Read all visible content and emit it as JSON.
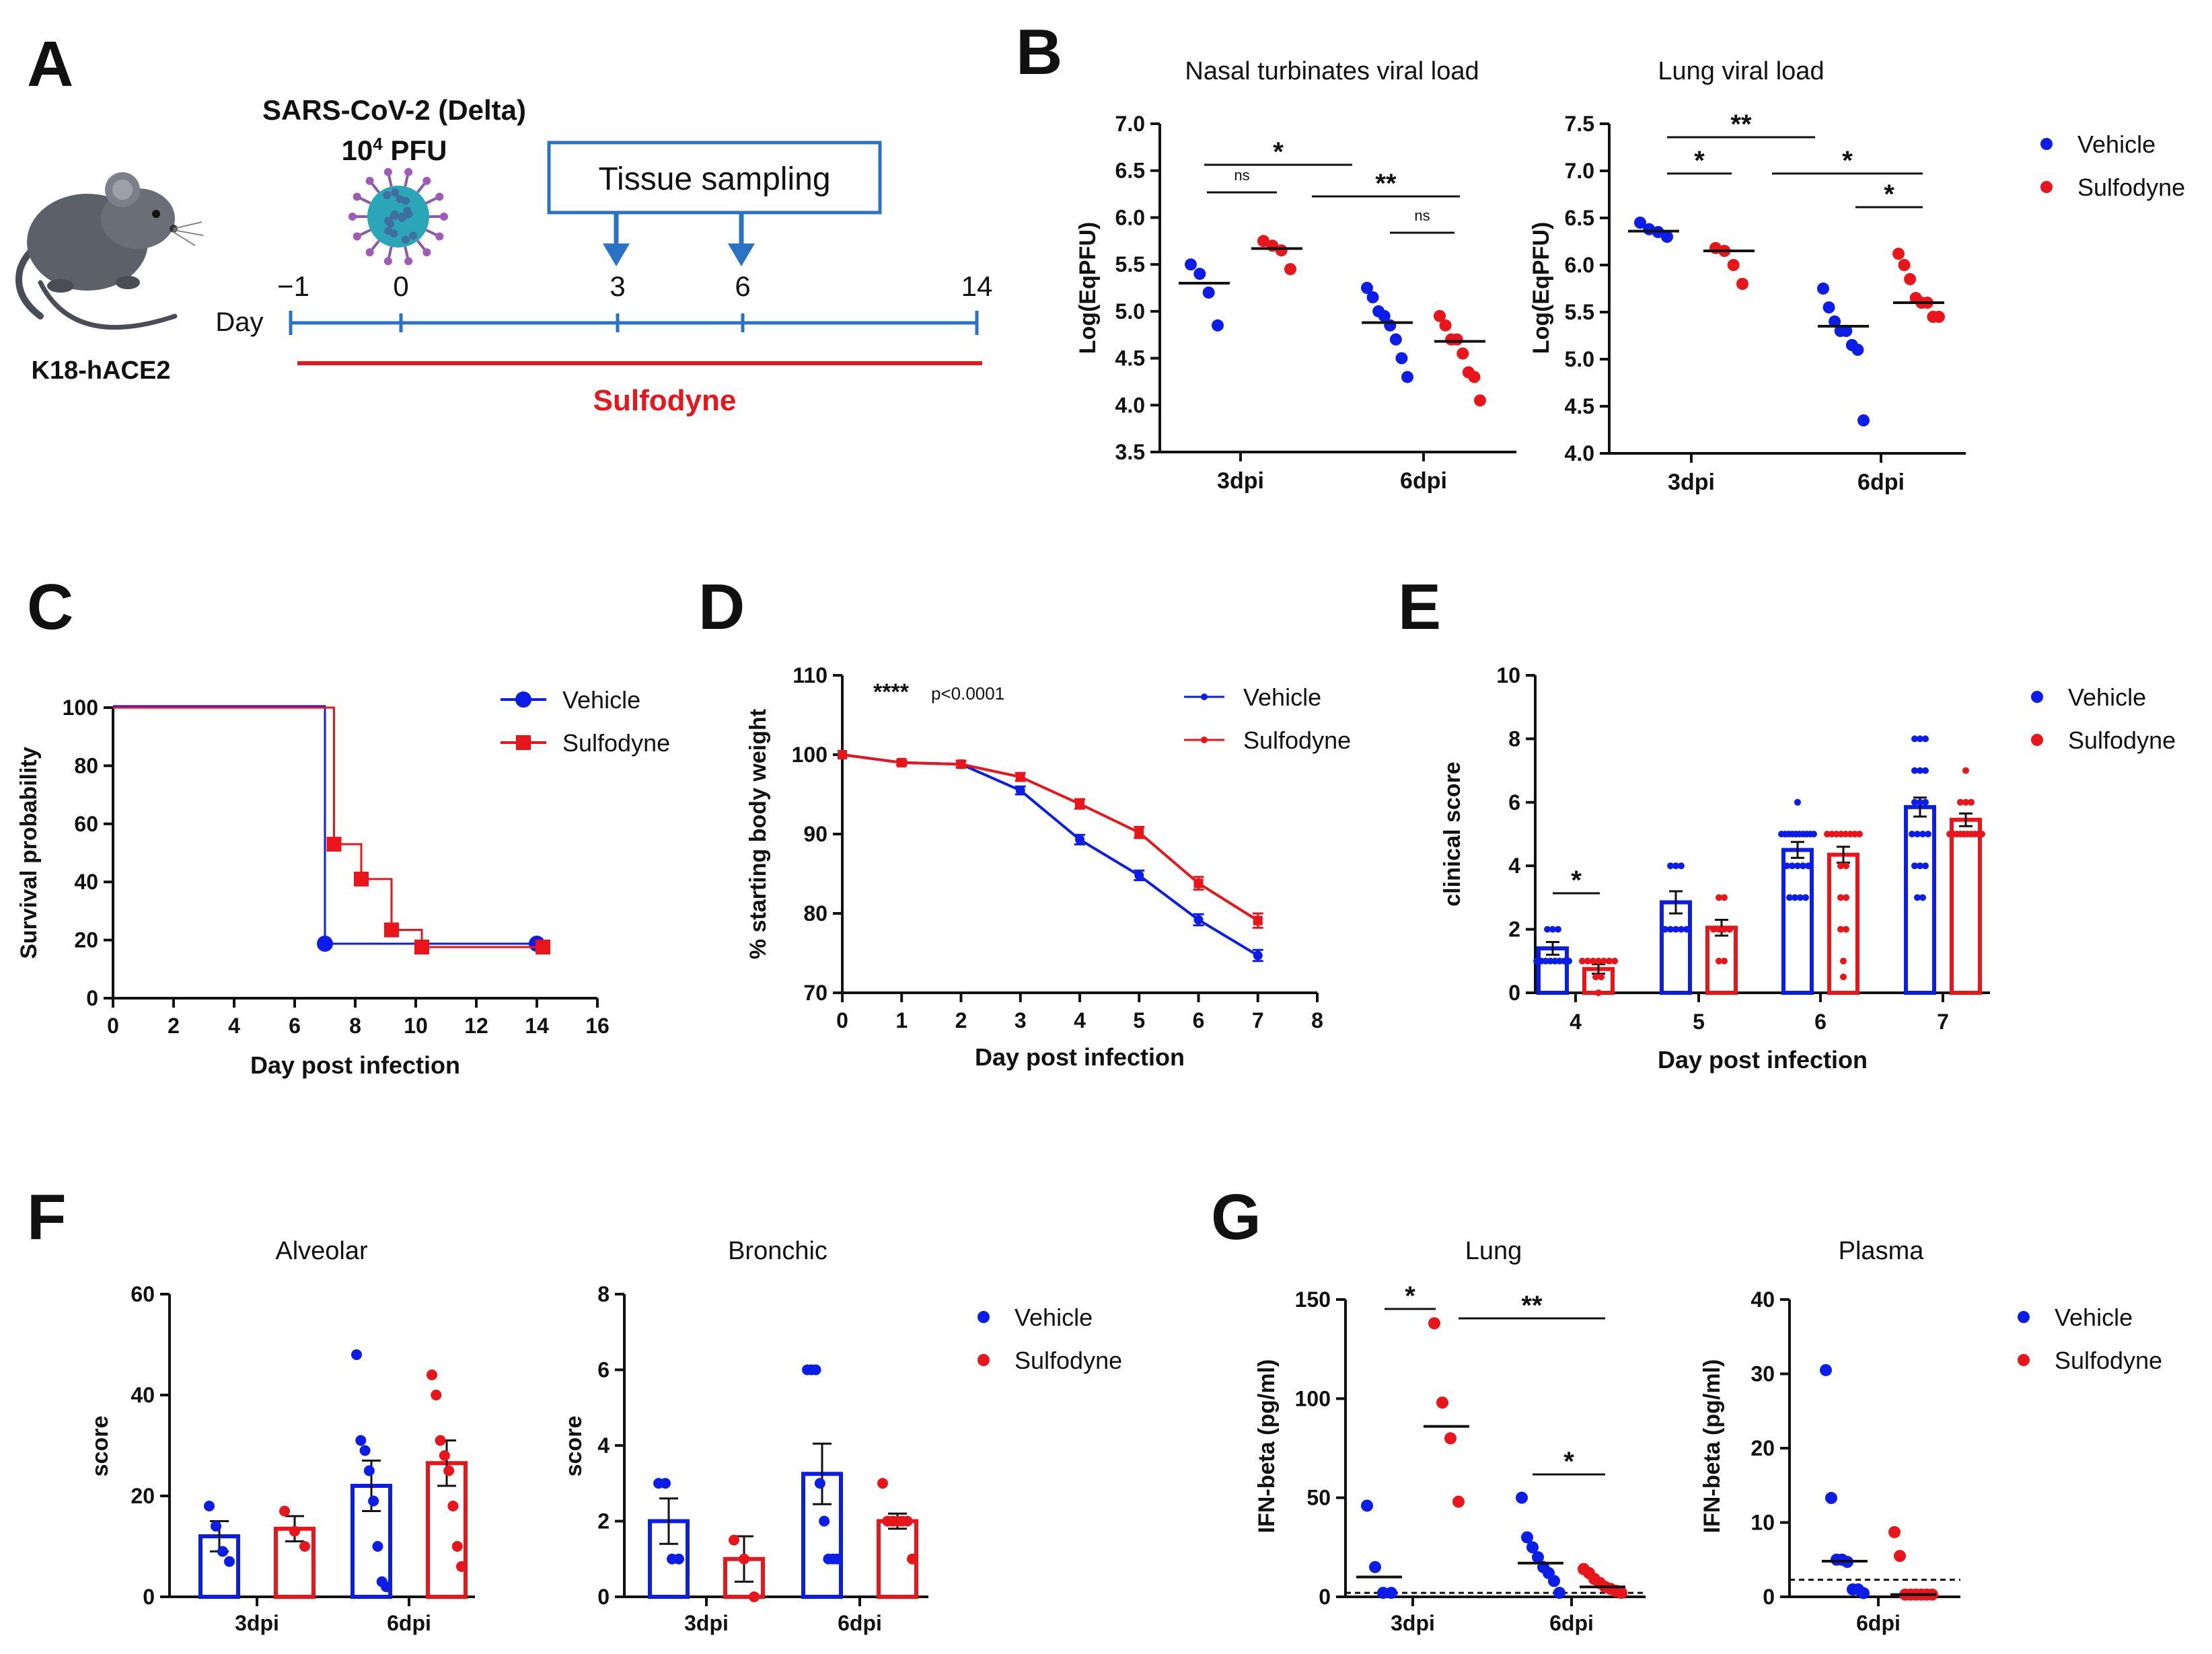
{
  "colors": {
    "vehicle": "#0b1de6",
    "sulfodyne": "#e8161b",
    "timeline": "#2a73c4",
    "axis": "#111111"
  },
  "panels": {
    "A": {
      "label": "A",
      "virus_line1": "SARS-CoV-2 (Delta)",
      "virus_line2_base": "10",
      "virus_line2_exp": "4",
      "virus_line2_unit": " PFU",
      "sampling_box": "Tissue sampling",
      "day_label": "Day",
      "days": [
        "−1",
        "0",
        "3",
        "6",
        "14"
      ],
      "mouse_label": "K18-hACE2",
      "treatment_label": "Sulfodyne"
    },
    "B": {
      "label": "B"
    },
    "C": {
      "label": "C"
    },
    "D": {
      "label": "D",
      "annotation_stars": "****",
      "annotation_p": "p<0.0001"
    },
    "E": {
      "label": "E"
    },
    "F": {
      "label": "F"
    },
    "G": {
      "label": "G"
    }
  },
  "legend": {
    "vehicle": "Vehicle",
    "sulfodyne": "Sulfodyne"
  },
  "chart_data": [
    {
      "id": "B1",
      "type": "scatter",
      "title": "Nasal turbinates viral load",
      "ylabel": "Log(EqPFU)",
      "ylim": [
        3.5,
        7.0
      ],
      "yticks": [
        "3.5",
        "4.0",
        "4.5",
        "5.0",
        "5.5",
        "6.0",
        "6.5",
        "7.0"
      ],
      "categories": [
        "3dpi",
        "6dpi"
      ],
      "series": [
        {
          "name": "Vehicle",
          "groups": [
            [
              5.5,
              5.4,
              5.2,
              4.85
            ],
            [
              5.25,
              5.15,
              5.0,
              4.95,
              4.85,
              4.7,
              4.5,
              4.3
            ]
          ],
          "medians": [
            5.3,
            4.88
          ]
        },
        {
          "name": "Sulfodyne",
          "groups": [
            [
              5.75,
              5.7,
              5.65,
              5.45
            ],
            [
              4.95,
              4.85,
              4.7,
              4.7,
              4.55,
              4.35,
              4.3,
              4.05
            ]
          ],
          "medians": [
            5.67,
            4.68
          ]
        }
      ],
      "significance": [
        {
          "from": "3dpi Vehicle",
          "to": "6dpi Vehicle",
          "label": "*"
        },
        {
          "from": "3dpi Vehicle",
          "to": "3dpi Sulfodyne",
          "label": "ns"
        },
        {
          "from": "3dpi Sulfodyne",
          "to": "6dpi Sulfodyne",
          "label": "**"
        },
        {
          "from": "6dpi Vehicle",
          "to": "6dpi Sulfodyne",
          "label": "ns"
        }
      ]
    },
    {
      "id": "B2",
      "type": "scatter",
      "title": "Lung viral load",
      "ylabel": "Log(EqPFU)",
      "ylim": [
        4.0,
        7.5
      ],
      "yticks": [
        "4.0",
        "4.5",
        "5.0",
        "5.5",
        "6.0",
        "6.5",
        "7.0",
        "7.5"
      ],
      "categories": [
        "3dpi",
        "6dpi"
      ],
      "series": [
        {
          "name": "Vehicle",
          "groups": [
            [
              6.45,
              6.38,
              6.35,
              6.3
            ],
            [
              5.75,
              5.55,
              5.4,
              5.3,
              5.3,
              5.15,
              5.1,
              4.35
            ]
          ],
          "medians": [
            6.36,
            5.35
          ]
        },
        {
          "name": "Sulfodyne",
          "groups": [
            [
              6.18,
              6.15,
              6.0,
              5.8
            ],
            [
              6.12,
              6.0,
              5.85,
              5.65,
              5.6,
              5.6,
              5.45,
              5.45
            ]
          ],
          "medians": [
            6.15,
            5.6
          ]
        }
      ],
      "significance": [
        {
          "from": "3dpi Vehicle",
          "to": "6dpi Vehicle",
          "label": "**"
        },
        {
          "from": "3dpi Vehicle",
          "to": "3dpi Sulfodyne",
          "label": "*"
        },
        {
          "from": "3dpi Sulfodyne",
          "to": "6dpi Sulfodyne",
          "label": "*"
        },
        {
          "from": "6dpi Vehicle",
          "to": "6dpi Sulfodyne",
          "label": "*"
        }
      ]
    },
    {
      "id": "C",
      "type": "line",
      "xlabel": "Day post infection",
      "ylabel": "Survival probability",
      "xlim": [
        0,
        16
      ],
      "ylim": [
        0,
        100
      ],
      "xticks": [
        "0",
        "2",
        "4",
        "6",
        "8",
        "10",
        "12",
        "14",
        "16"
      ],
      "yticks": [
        "0",
        "20",
        "40",
        "60",
        "80",
        "100"
      ],
      "series": [
        {
          "name": "Vehicle",
          "steps": [
            [
              0,
              100.5
            ],
            [
              7,
              100.5
            ],
            [
              7,
              18.75
            ],
            [
              14,
              18.75
            ]
          ],
          "markers": [
            [
              7,
              18.75
            ],
            [
              14,
              18.75
            ]
          ]
        },
        {
          "name": "Sulfodyne",
          "steps": [
            [
              0,
              100
            ],
            [
              7.3,
              100
            ],
            [
              7.3,
              53
            ],
            [
              8.2,
              53
            ],
            [
              8.2,
              41
            ],
            [
              9.2,
              41
            ],
            [
              9.2,
              23.5
            ],
            [
              10.2,
              23.5
            ],
            [
              10.2,
              17.6
            ],
            [
              14.2,
              17.6
            ]
          ],
          "markers": [
            [
              7.3,
              53
            ],
            [
              8.2,
              41
            ],
            [
              9.2,
              23.5
            ],
            [
              10.2,
              17.6
            ],
            [
              14.2,
              17.6
            ]
          ]
        }
      ]
    },
    {
      "id": "D",
      "type": "line",
      "xlabel": "Day post infection",
      "ylabel": "% starting body weight",
      "xlim": [
        0,
        8
      ],
      "ylim": [
        70,
        110
      ],
      "xticks": [
        "0",
        "1",
        "2",
        "3",
        "4",
        "5",
        "6",
        "7",
        "8"
      ],
      "yticks": [
        "70",
        "80",
        "90",
        "100",
        "110"
      ],
      "x": [
        0,
        1,
        2,
        3,
        4,
        5,
        6,
        7
      ],
      "series": [
        {
          "name": "Vehicle",
          "values": [
            100,
            99,
            98.8,
            95.5,
            89.3,
            84.8,
            79.2,
            74.7
          ],
          "sem": [
            0,
            0.3,
            0.4,
            0.5,
            0.6,
            0.6,
            0.7,
            0.7
          ]
        },
        {
          "name": "Sulfodyne",
          "values": [
            100,
            99,
            98.8,
            97.2,
            93.8,
            90.2,
            83.8,
            79.1
          ],
          "sem": [
            0,
            0.3,
            0.4,
            0.5,
            0.6,
            0.7,
            0.8,
            0.9
          ]
        }
      ]
    },
    {
      "id": "E",
      "type": "bar",
      "xlabel": "Day post infection",
      "ylabel": "clinical score",
      "ylim": [
        0,
        10
      ],
      "yticks": [
        "0",
        "2",
        "4",
        "6",
        "8",
        "10"
      ],
      "categories": [
        "4",
        "5",
        "6",
        "7"
      ],
      "series": [
        {
          "name": "Vehicle",
          "values": [
            1.4,
            2.85,
            4.5,
            5.85
          ],
          "sem": [
            0.2,
            0.35,
            0.25,
            0.3
          ],
          "points": [
            [
              2,
              2,
              2,
              1,
              1,
              1,
              1,
              1,
              1,
              1,
              1
            ],
            [
              4,
              4,
              4,
              2,
              2,
              2,
              2,
              2
            ],
            [
              6,
              5,
              5,
              5,
              5,
              5,
              5,
              5,
              5,
              5,
              5,
              4,
              4,
              4,
              4,
              4,
              3,
              3,
              3,
              3
            ],
            [
              8,
              8,
              8,
              7,
              7,
              7,
              6,
              6,
              6,
              5,
              5,
              5,
              5,
              4,
              4,
              4,
              3,
              3
            ]
          ]
        },
        {
          "name": "Sulfodyne",
          "values": [
            0.75,
            2.05,
            4.35,
            5.45
          ],
          "sem": [
            0.15,
            0.25,
            0.25,
            0.2
          ],
          "points": [
            [
              1,
              1,
              1,
              1,
              1,
              1,
              1,
              0.5,
              0.5,
              0
            ],
            [
              3,
              3,
              2,
              2,
              2,
              2,
              1,
              1
            ],
            [
              5,
              5,
              5,
              5,
              5,
              5,
              5,
              5,
              4,
              4,
              3,
              3,
              2,
              2,
              1,
              0.5
            ],
            [
              7,
              6,
              6,
              6,
              5,
              5,
              5,
              5,
              5,
              5,
              5,
              5,
              5,
              5
            ]
          ]
        }
      ],
      "significance": [
        {
          "category": "4",
          "label": "*"
        }
      ]
    },
    {
      "id": "F1",
      "type": "bar",
      "title": "Alveolar",
      "ylabel": "score",
      "ylim": [
        0,
        60
      ],
      "yticks": [
        "0",
        "20",
        "40",
        "60"
      ],
      "categories": [
        "3dpi",
        "6dpi"
      ],
      "series": [
        {
          "name": "Vehicle",
          "values": [
            12,
            22
          ],
          "sem": [
            3,
            5
          ],
          "points": [
            [
              18,
              14,
              9,
              7
            ],
            [
              48,
              31,
              29,
              25,
              19,
              10,
              3,
              2
            ]
          ]
        },
        {
          "name": "Sulfodyne",
          "values": [
            13.5,
            26.5
          ],
          "sem": [
            2.5,
            4.5
          ],
          "points": [
            [
              17,
              13,
              10
            ],
            [
              44,
              40,
              31,
              28,
              25,
              18,
              10,
              6
            ]
          ]
        }
      ]
    },
    {
      "id": "F2",
      "type": "bar",
      "title": "Bronchic",
      "ylabel": "score",
      "ylim": [
        0,
        8
      ],
      "yticks": [
        "0",
        "2",
        "4",
        "6",
        "8"
      ],
      "categories": [
        "3dpi",
        "6dpi"
      ],
      "series": [
        {
          "name": "Vehicle",
          "values": [
            2,
            3.25
          ],
          "sem": [
            0.6,
            0.8
          ],
          "points": [
            [
              3,
              3,
              1,
              1
            ],
            [
              6,
              6,
              6,
              3,
              2,
              1,
              1,
              1
            ]
          ]
        },
        {
          "name": "Sulfodyne",
          "values": [
            1,
            2
          ],
          "sem": [
            0.6,
            0.2
          ],
          "points": [
            [
              1.5,
              1,
              0
            ],
            [
              3,
              2,
              2,
              2,
              2,
              2,
              1
            ]
          ]
        }
      ]
    },
    {
      "id": "G1",
      "type": "scatter",
      "title": "Lung",
      "ylabel": "IFN-beta (pg/ml)",
      "ylim": [
        0,
        150
      ],
      "yticks": [
        "0",
        "50",
        "100",
        "150"
      ],
      "categories": [
        "3dpi",
        "6dpi"
      ],
      "detection_limit": 2,
      "series": [
        {
          "name": "Vehicle",
          "groups": [
            [
              46,
              15,
              2,
              2
            ],
            [
              50,
              30,
              25,
              20,
              15,
              12,
              8,
              2
            ]
          ],
          "medians": [
            10,
            17
          ]
        },
        {
          "name": "Sulfodyne",
          "groups": [
            [
              138,
              98,
              80,
              48
            ],
            [
              14,
              12,
              9,
              7,
              5,
              4,
              3,
              2
            ]
          ],
          "medians": [
            86,
            5
          ]
        }
      ],
      "significance": [
        {
          "from": "3dpi Vehicle",
          "to": "3dpi Sulfodyne",
          "label": "*"
        },
        {
          "from": "3dpi Sulfodyne",
          "to": "6dpi Sulfodyne",
          "label": "**"
        },
        {
          "from": "6dpi Vehicle",
          "to": "6dpi Sulfodyne",
          "label": "*"
        }
      ]
    },
    {
      "id": "G2",
      "type": "scatter",
      "title": "Plasma",
      "ylabel": "IFN-beta (pg/ml)",
      "ylim": [
        0,
        40
      ],
      "yticks": [
        "0",
        "10",
        "20",
        "30",
        "40"
      ],
      "categories": [
        "6dpi"
      ],
      "detection_limit": 2.3,
      "series": [
        {
          "name": "Vehicle",
          "groups": [
            [
              30.5,
              13.3,
              5,
              5,
              4.7,
              1,
              1,
              0.5
            ]
          ],
          "medians": [
            4.8
          ]
        },
        {
          "name": "Sulfodyne",
          "groups": [
            [
              8.7,
              5.5,
              0.3,
              0.3,
              0.3,
              0.3,
              0.3,
              0.3
            ]
          ],
          "medians": [
            0.3
          ]
        }
      ]
    }
  ]
}
